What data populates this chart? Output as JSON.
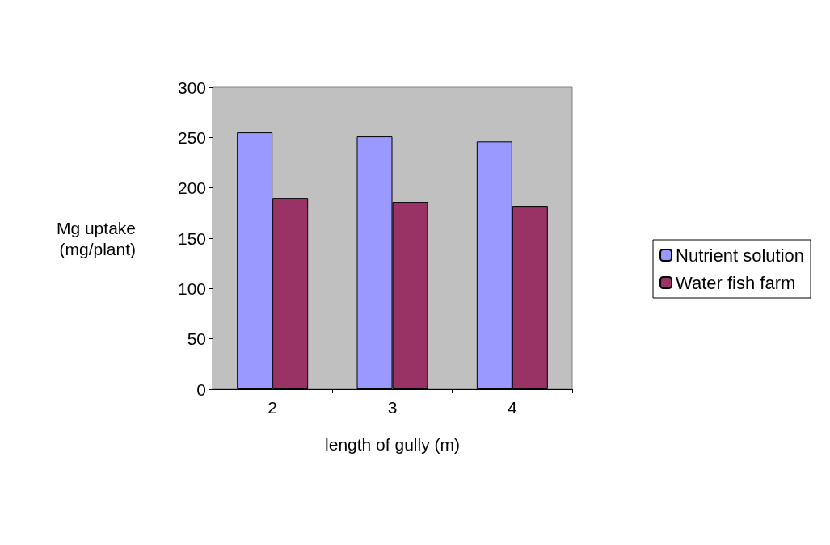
{
  "chart_data": {
    "type": "bar",
    "xlabel": "length of gully (m)",
    "ylabel": "Mg uptake\n(mg/plant)",
    "categories": [
      "2",
      "3",
      "4"
    ],
    "series": [
      {
        "name": "Nutrient solution",
        "color": "#9999ff",
        "values": [
          255,
          251,
          246
        ]
      },
      {
        "name": "Water fish farm",
        "color": "#993366",
        "values": [
          190,
          186,
          182
        ]
      }
    ],
    "ylim": [
      0,
      300
    ],
    "yticks": [
      0,
      50,
      100,
      150,
      200,
      250,
      300
    ],
    "grid": false,
    "legend": "right"
  }
}
